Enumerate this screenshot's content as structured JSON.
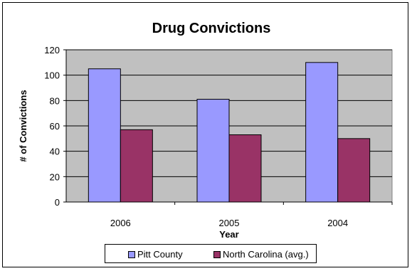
{
  "chart_data": {
    "type": "bar",
    "title": "Drug Convictions",
    "xlabel": "Year",
    "ylabel": "# of Convictions",
    "categories": [
      "2006",
      "2005",
      "2004"
    ],
    "series": [
      {
        "name": "Pitt County",
        "values": [
          105,
          81,
          110
        ],
        "color": "#9999ff"
      },
      {
        "name": "North Carolina (avg.)",
        "values": [
          57,
          53,
          50
        ],
        "color": "#993366"
      }
    ],
    "ylim": [
      0,
      120
    ],
    "yticks": [
      0,
      20,
      40,
      60,
      80,
      100,
      120
    ],
    "grid": true,
    "plot_background": "#c0c0c0",
    "legend_position": "bottom"
  }
}
